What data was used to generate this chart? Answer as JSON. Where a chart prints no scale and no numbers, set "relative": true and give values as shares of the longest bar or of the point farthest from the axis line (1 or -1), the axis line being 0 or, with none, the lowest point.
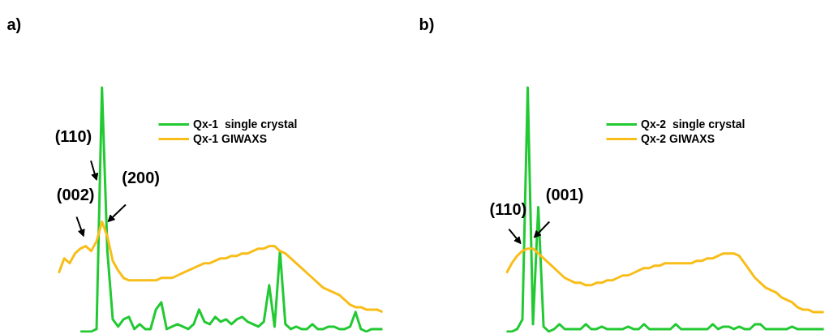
{
  "chart_data": [
    {
      "type": "line",
      "title": "a)",
      "relative": true,
      "legend": "top right",
      "categories": [
        null,
        null,
        null,
        null,
        null,
        null,
        null,
        null,
        null,
        null,
        null,
        null,
        null,
        null,
        null,
        null,
        null,
        null,
        null,
        null,
        null,
        null,
        null,
        null,
        null,
        null,
        null,
        null,
        null,
        null,
        null,
        null,
        null,
        null,
        null,
        null,
        null,
        null,
        null,
        null,
        null,
        null,
        null,
        null,
        null,
        null,
        null,
        null,
        null,
        null,
        null,
        null,
        null,
        null,
        null,
        null,
        null,
        null,
        null,
        null,
        null
      ],
      "series": [
        {
          "name": "Qx-1  single crystal",
          "color": "#22c932",
          "values": [
            null,
            null,
            null,
            null,
            0,
            0,
            0,
            0.01,
            1.0,
            0.33,
            0.05,
            0.02,
            0.05,
            0.06,
            0.01,
            0.03,
            0.01,
            0.01,
            0.09,
            0.12,
            0.01,
            0.02,
            0.03,
            0.02,
            0.01,
            0.03,
            0.09,
            0.04,
            0.03,
            0.06,
            0.04,
            0.05,
            0.03,
            0.05,
            0.06,
            0.04,
            0.03,
            0.02,
            0.04,
            0.19,
            0.02,
            0.33,
            0.03,
            0.01,
            0.02,
            0.01,
            0.01,
            0.03,
            0.01,
            0.01,
            0.02,
            0.02,
            0.01,
            0.01,
            0.02,
            0.08,
            0.01,
            0,
            0.01,
            0.01,
            0.01
          ]
        },
        {
          "name": "Qx-1 GIWAXS",
          "color": "#f9bd1a",
          "values": [
            0.24,
            0.3,
            0.28,
            0.32,
            0.34,
            0.35,
            0.33,
            0.37,
            0.45,
            0.39,
            0.29,
            0.25,
            0.22,
            0.21,
            0.21,
            0.21,
            0.21,
            0.21,
            0.21,
            0.22,
            0.22,
            0.22,
            0.23,
            0.24,
            0.25,
            0.26,
            0.27,
            0.28,
            0.28,
            0.29,
            0.3,
            0.3,
            0.31,
            0.31,
            0.32,
            0.32,
            0.33,
            0.34,
            0.34,
            0.35,
            0.35,
            0.33,
            0.32,
            0.3,
            0.28,
            0.26,
            0.24,
            0.22,
            0.2,
            0.18,
            0.17,
            0.16,
            0.15,
            0.13,
            0.11,
            0.1,
            0.1,
            0.09,
            0.09,
            0.09,
            0.08
          ]
        }
      ],
      "annotations": [
        "(002)",
        "(110)",
        "(200)"
      ]
    },
    {
      "type": "line",
      "title": "b)",
      "relative": true,
      "legend": "top right",
      "categories": [
        null,
        null,
        null,
        null,
        null,
        null,
        null,
        null,
        null,
        null,
        null,
        null,
        null,
        null,
        null,
        null,
        null,
        null,
        null,
        null,
        null,
        null,
        null,
        null,
        null,
        null,
        null,
        null,
        null,
        null,
        null,
        null,
        null,
        null,
        null,
        null,
        null,
        null,
        null,
        null,
        null,
        null,
        null,
        null,
        null,
        null,
        null,
        null,
        null,
        null,
        null,
        null,
        null,
        null,
        null,
        null,
        null,
        null,
        null,
        null,
        null
      ],
      "series": [
        {
          "name": "Qx-2  single crystal",
          "color": "#22c932",
          "values": [
            0,
            0,
            0.01,
            0.05,
            1.0,
            0.03,
            0.51,
            0.02,
            0,
            0.01,
            0.03,
            0.01,
            0.01,
            0.01,
            0.01,
            0.03,
            0.01,
            0.01,
            0.02,
            0.01,
            0.01,
            0.01,
            0.01,
            0.02,
            0.01,
            0.01,
            0.03,
            0.01,
            0.01,
            0.01,
            0.01,
            0.01,
            0.03,
            0.01,
            0.01,
            0.01,
            0.01,
            0.01,
            0.01,
            0.03,
            0.01,
            0.02,
            0.02,
            0.01,
            0.02,
            0.01,
            0.01,
            0.03,
            0.03,
            0.01,
            0.01,
            0.01,
            0.01,
            0.01,
            0.02,
            0.01,
            0.01,
            0.01,
            0.01,
            0.01,
            0.01
          ]
        },
        {
          "name": "Qx-2 GIWAXS",
          "color": "#f9bd1a",
          "values": [
            0.24,
            0.28,
            0.31,
            0.33,
            0.34,
            0.34,
            0.32,
            0.3,
            0.28,
            0.26,
            0.24,
            0.22,
            0.21,
            0.2,
            0.2,
            0.19,
            0.19,
            0.2,
            0.2,
            0.21,
            0.21,
            0.22,
            0.23,
            0.23,
            0.24,
            0.25,
            0.26,
            0.26,
            0.27,
            0.27,
            0.28,
            0.28,
            0.28,
            0.28,
            0.28,
            0.28,
            0.29,
            0.29,
            0.3,
            0.3,
            0.31,
            0.32,
            0.32,
            0.32,
            0.31,
            0.28,
            0.25,
            0.22,
            0.2,
            0.18,
            0.17,
            0.16,
            0.14,
            0.13,
            0.12,
            0.1,
            0.09,
            0.09,
            0.08,
            0.08,
            0.08
          ]
        }
      ],
      "annotations": [
        "(110)",
        "(001)"
      ]
    }
  ]
}
